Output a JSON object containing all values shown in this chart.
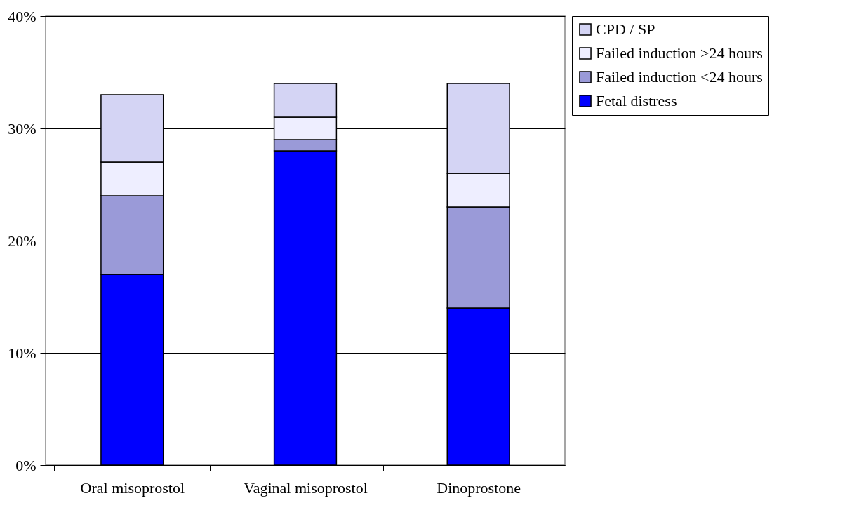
{
  "chart_data": {
    "type": "bar",
    "stacked": true,
    "categories": [
      "Oral misoprostol",
      "Vaginal misoprostol",
      "Dinoprostone"
    ],
    "series": [
      {
        "name": "Fetal distress",
        "color": "#0000ff",
        "values": [
          17,
          28,
          14
        ]
      },
      {
        "name": "Failed induction <24 hours",
        "color": "#9a9ad8",
        "values": [
          7,
          1,
          9
        ]
      },
      {
        "name": "Failed induction >24 hours",
        "color": "#eeeeff",
        "values": [
          3,
          2,
          3
        ]
      },
      {
        "name": "CPD / SP",
        "color": "#d4d4f4",
        "values": [
          6,
          3,
          8
        ]
      }
    ],
    "ylim": [
      0,
      40
    ],
    "yticks": [
      {
        "value": 0,
        "label": "0%"
      },
      {
        "value": 10,
        "label": "10%"
      },
      {
        "value": 20,
        "label": "20%"
      },
      {
        "value": 30,
        "label": "30%"
      },
      {
        "value": 40,
        "label": "40%"
      }
    ],
    "grid": "y",
    "legend": "right"
  }
}
